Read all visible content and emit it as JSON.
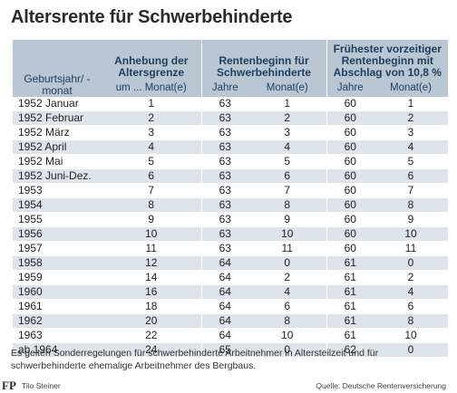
{
  "title": "Altersrente für Schwerbehinderte",
  "headers": {
    "col1": "Geburtsjahr/ -monat",
    "col2": "Anhebung der Altersgrenze",
    "col2_sub": "um ... Monat(e)",
    "col3": "Rentenbeginn für Schwerbehinderte",
    "col3_sub_a": "Jahre",
    "col3_sub_b": "Monat(e)",
    "col4": "Frühester vorzeitiger Rentenbeginn mit Abschlag von 10,8 %",
    "col4_sub_a": "Jahre",
    "col4_sub_b": "Monat(e)"
  },
  "rows": [
    {
      "label": "1952 Januar",
      "raise": "1",
      "y": "63",
      "m": "1",
      "ey": "60",
      "em": "1"
    },
    {
      "label": "1952 Februar",
      "raise": "2",
      "y": "63",
      "m": "2",
      "ey": "60",
      "em": "2"
    },
    {
      "label": "1952 März",
      "raise": "3",
      "y": "63",
      "m": "3",
      "ey": "60",
      "em": "3"
    },
    {
      "label": "1952 April",
      "raise": "4",
      "y": "63",
      "m": "4",
      "ey": "60",
      "em": "4"
    },
    {
      "label": "1952 Mai",
      "raise": "5",
      "y": "63",
      "m": "5",
      "ey": "60",
      "em": "5"
    },
    {
      "label": "1952 Juni-Dez.",
      "raise": "6",
      "y": "63",
      "m": "6",
      "ey": "60",
      "em": "6"
    },
    {
      "label": "1953",
      "raise": "7",
      "y": "63",
      "m": "7",
      "ey": "60",
      "em": "7"
    },
    {
      "label": "1954",
      "raise": "8",
      "y": "63",
      "m": "8",
      "ey": "60",
      "em": "8"
    },
    {
      "label": "1955",
      "raise": "9",
      "y": "63",
      "m": "9",
      "ey": "60",
      "em": "9"
    },
    {
      "label": "1956",
      "raise": "10",
      "y": "63",
      "m": "10",
      "ey": "60",
      "em": "10"
    },
    {
      "label": "1957",
      "raise": "11",
      "y": "63",
      "m": "11",
      "ey": "60",
      "em": "11"
    },
    {
      "label": "1958",
      "raise": "12",
      "y": "64",
      "m": "0",
      "ey": "61",
      "em": "0"
    },
    {
      "label": "1959",
      "raise": "14",
      "y": "64",
      "m": "2",
      "ey": "61",
      "em": "2"
    },
    {
      "label": "1960",
      "raise": "16",
      "y": "64",
      "m": "4",
      "ey": "61",
      "em": "4"
    },
    {
      "label": "1961",
      "raise": "18",
      "y": "64",
      "m": "6",
      "ey": "61",
      "em": "6"
    },
    {
      "label": "1962",
      "raise": "20",
      "y": "64",
      "m": "8",
      "ey": "61",
      "em": "8"
    },
    {
      "label": "1963",
      "raise": "22",
      "y": "64",
      "m": "10",
      "ey": "61",
      "em": "10"
    },
    {
      "label": "ab 1964",
      "raise": "24",
      "y": "65",
      "m": "0",
      "ey": "62",
      "em": "0"
    }
  ],
  "footnote": "Es gelten Sonderregelungen für schwerbehinderte Arbeitnehmer in Altersteilzeit und für schwerbehinderte ehemalige Arbeitnehmer des Bergbaus.",
  "footer": {
    "logo": "FP",
    "author": "Tilo Steiner",
    "source": "Quelle: Deutsche Rentenversicherung"
  }
}
